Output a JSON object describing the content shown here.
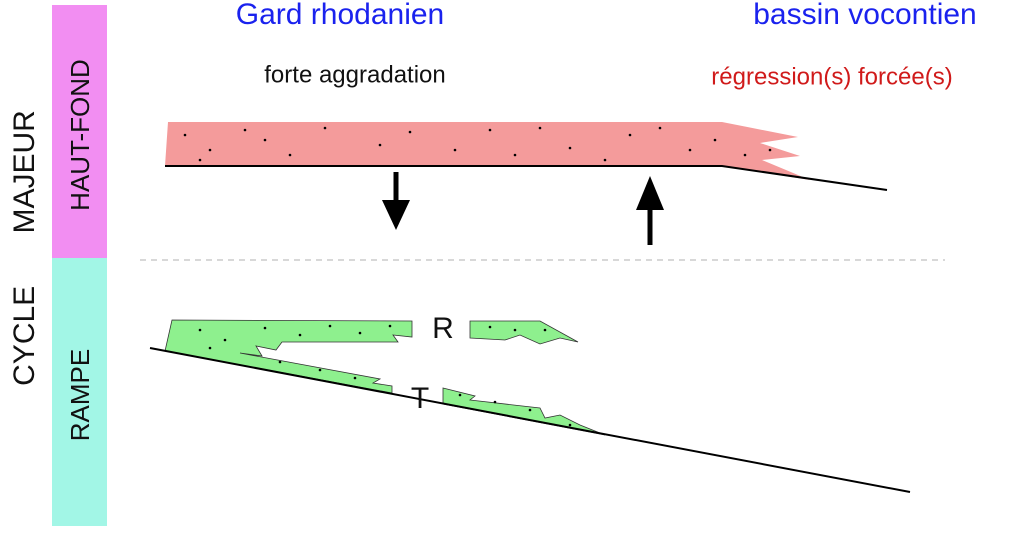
{
  "header": {
    "left": "Gard rhodanien",
    "right": "bassin vocontien"
  },
  "subheader": {
    "left": "forte aggradation",
    "right": "régression(s) forcée(s)"
  },
  "side": {
    "cycle": "CYCLE MAJEUR",
    "upper": "HAUT-FOND",
    "lower": "RAMPE"
  },
  "labels": {
    "r": "R",
    "t": "T"
  }
}
